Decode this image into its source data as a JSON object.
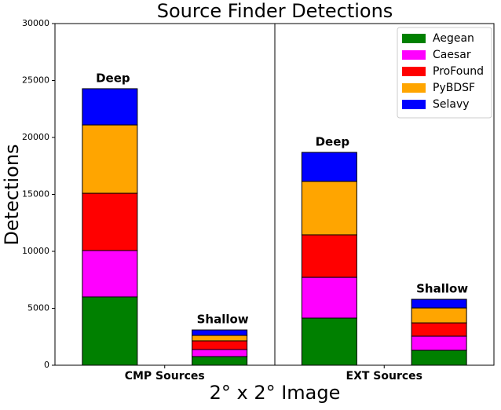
{
  "chart_data": {
    "type": "stacked-bar",
    "title": "Source Finder Detections",
    "x_label": "2° x 2°  Image",
    "y_label": "Detections",
    "groups": [
      "CMP Sources",
      "EXT Sources"
    ],
    "categories": [
      "Deep",
      "Shallow",
      "Deep",
      "Shallow"
    ],
    "series": [
      {
        "name": "Aegean",
        "color": "#008000",
        "values": [
          6000,
          760,
          4140,
          1310
        ]
      },
      {
        "name": "Caesar",
        "color": "#ff00ff",
        "values": [
          4070,
          620,
          3580,
          1240
        ]
      },
      {
        "name": "ProFound",
        "color": "#ff0000",
        "values": [
          5030,
          760,
          3730,
          1170
        ]
      },
      {
        "name": "PyBDSF",
        "color": "#ffa500",
        "values": [
          6000,
          480,
          4690,
          1310
        ]
      },
      {
        "name": "Selavy",
        "color": "#0000ff",
        "values": [
          3180,
          480,
          2550,
          760
        ]
      }
    ],
    "ylim": [
      0,
      30000
    ],
    "yticks": [
      0,
      5000,
      10000,
      15000,
      20000,
      25000,
      30000
    ],
    "grid": false,
    "legend": "upper right"
  }
}
